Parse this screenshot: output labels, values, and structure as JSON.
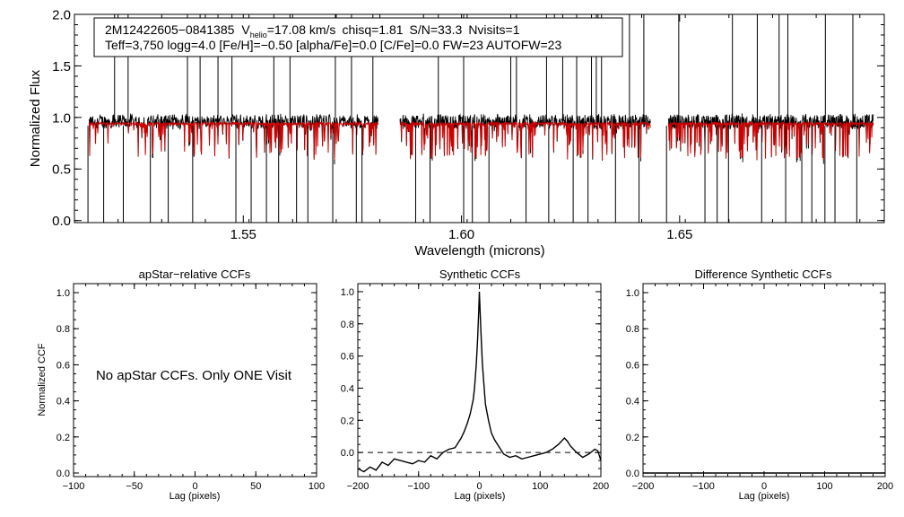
{
  "chart_data": [
    {
      "type": "line",
      "panel": "spectrum",
      "title": "",
      "xlabel": "Wavelength (microns)",
      "ylabel": "Normalized Flux",
      "xlim": [
        1.5113,
        1.6969
      ],
      "ylim": [
        -0.02,
        2.0
      ],
      "xticks": [
        1.55,
        1.6,
        1.65
      ],
      "xtick_labels": [
        "1.55",
        "1.60",
        "1.65"
      ],
      "yticks": [
        0.0,
        0.5,
        1.0,
        1.5,
        2.0
      ],
      "ytick_labels": [
        "0.0",
        "0.5",
        "1.0",
        "1.5",
        "2.0"
      ],
      "info_box": {
        "id": "2M12422605−0841385",
        "vhelio_prefix": "V",
        "vhelio_sub": "helio",
        "vhelio_value": "=17.08 km/s",
        "chisq": "chisq=1.81",
        "sn": "S/N=33.3",
        "nvisits": "Nvisits=1",
        "line2": "Teff=3,750 logg=4.0 [Fe/H]=−0.50 [alpha/Fe]=0.0 [C/Fe]=0.0 FW=23 AUTOFW=23"
      },
      "chip_ranges": [
        [
          1.5146,
          1.5809
        ],
        [
          1.5859,
          1.6433
        ],
        [
          1.6474,
          1.6944
        ]
      ],
      "series": [
        {
          "name": "observed spectrum",
          "color": "#000000",
          "continuum": 0.96,
          "noise": 0.045
        },
        {
          "name": "synthetic model",
          "color": "#cc0000",
          "continuum": 0.94,
          "noise": 0.012
        }
      ],
      "emission_spikes": [
        1.5205,
        1.5236,
        1.5372,
        1.5401,
        1.5442,
        1.5474,
        1.557,
        1.5607,
        1.5711,
        1.5748,
        1.5797,
        1.5947,
        1.6005,
        1.6113,
        1.6126,
        1.6195,
        1.6232,
        1.6264,
        1.6298,
        1.6309,
        1.6321,
        1.6385,
        1.6418,
        1.6498,
        1.6621,
        1.6678,
        1.6728,
        1.6748,
        1.6834,
        1.6897
      ],
      "absorption_drops": [
        1.5144,
        1.518,
        1.5225,
        1.5287,
        1.5328,
        1.5384,
        1.5483,
        1.5518,
        1.5553,
        1.5581,
        1.5622,
        1.5648,
        1.5705,
        1.5759,
        1.5772,
        1.5895,
        1.5928,
        1.6005,
        1.6025,
        1.6063,
        1.6148,
        1.62,
        1.6256,
        1.629,
        1.6353,
        1.6407,
        1.647,
        1.6558,
        1.6586,
        1.6612,
        1.6688,
        1.6743,
        1.678,
        1.6803,
        1.6833,
        1.6856,
        1.6906
      ]
    },
    {
      "type": "line",
      "panel": "apstar-relative",
      "title": "apStar−relative CCFs",
      "xlabel": "Lag (pixels)",
      "ylabel": "Normalized CCF",
      "xlim": [
        -100,
        100
      ],
      "ylim": [
        -0.02,
        1.05
      ],
      "xticks": [
        -100,
        -50,
        0,
        50,
        100
      ],
      "xtick_labels": [
        "−100",
        "−50",
        "0",
        "50",
        "100"
      ],
      "yticks": [
        0.0,
        0.2,
        0.4,
        0.6,
        0.8,
        1.0
      ],
      "ytick_labels": [
        "0.0",
        "0.2",
        "0.4",
        "0.6",
        "0.8",
        "1.0"
      ],
      "note": "No apStar CCFs.  Only ONE Visit",
      "series": []
    },
    {
      "type": "line",
      "panel": "synthetic",
      "title": "Synthetic CCFs",
      "xlabel": "Lag (pixels)",
      "ylabel": "",
      "xlim": [
        -200,
        200
      ],
      "ylim": [
        -0.15,
        1.05
      ],
      "xticks": [
        -200,
        -100,
        0,
        100,
        200
      ],
      "xtick_labels": [
        "−200",
        "−100",
        "0",
        "100",
        "200"
      ],
      "yticks": [
        0.0,
        0.2,
        0.4,
        0.6,
        0.8,
        1.0
      ],
      "ytick_labels": [
        "0.0",
        "0.2",
        "0.4",
        "0.6",
        "0.8",
        "1.0"
      ],
      "reference_line": {
        "y": 0.0,
        "style": "dashed"
      },
      "series": [
        {
          "name": "CCF",
          "x": [
            -200,
            -190,
            -180,
            -170,
            -160,
            -150,
            -140,
            -130,
            -120,
            -110,
            -100,
            -90,
            -80,
            -70,
            -60,
            -50,
            -40,
            -35,
            -30,
            -25,
            -20,
            -15,
            -10,
            -8,
            -5,
            -3,
            -1,
            0,
            1,
            3,
            5,
            8,
            10,
            15,
            20,
            25,
            30,
            35,
            40,
            50,
            60,
            70,
            80,
            90,
            100,
            110,
            120,
            130,
            140,
            145,
            150,
            160,
            170,
            180,
            190,
            195,
            200
          ],
          "y": [
            -0.1,
            -0.12,
            -0.09,
            -0.11,
            -0.06,
            -0.08,
            -0.04,
            -0.05,
            -0.06,
            -0.07,
            -0.05,
            -0.06,
            -0.02,
            -0.04,
            0.0,
            0.02,
            0.03,
            0.06,
            0.09,
            0.13,
            0.18,
            0.24,
            0.33,
            0.4,
            0.55,
            0.7,
            0.88,
            1.0,
            0.9,
            0.72,
            0.55,
            0.4,
            0.3,
            0.2,
            0.12,
            0.08,
            0.05,
            0.02,
            -0.01,
            -0.03,
            -0.02,
            -0.04,
            -0.03,
            -0.02,
            -0.01,
            0.0,
            0.02,
            0.05,
            0.09,
            0.07,
            0.04,
            0.0,
            -0.03,
            -0.01,
            0.02,
            0.01,
            -0.05
          ]
        }
      ]
    },
    {
      "type": "line",
      "panel": "difference-synthetic",
      "title": "Difference Synthetic CCFs",
      "xlabel": "Lag (pixels)",
      "ylabel": "",
      "xlim": [
        -200,
        200
      ],
      "ylim": [
        -0.02,
        1.05
      ],
      "xticks": [
        -200,
        -100,
        0,
        100,
        200
      ],
      "xtick_labels": [
        "−200",
        "−100",
        "0",
        "100",
        "200"
      ],
      "yticks": [
        0.0,
        0.2,
        0.4,
        0.6,
        0.8,
        1.0
      ],
      "ytick_labels": [
        "0.0",
        "0.2",
        "0.4",
        "0.6",
        "0.8",
        "1.0"
      ],
      "series": [
        {
          "name": "difference CCF",
          "x": [
            -200,
            200
          ],
          "y": [
            0.0,
            0.0
          ]
        }
      ]
    }
  ]
}
